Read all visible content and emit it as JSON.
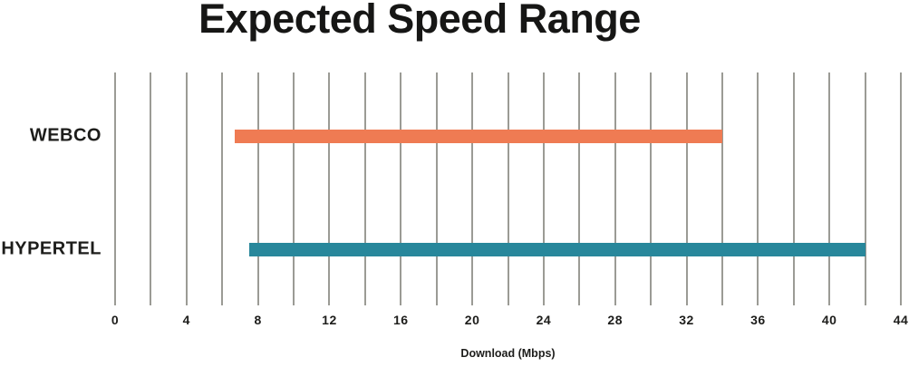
{
  "title": "Expected Speed Range",
  "chart_data": {
    "type": "bar",
    "subtype": "horizontal-range-bars",
    "title": "Expected Speed Range",
    "categories": [
      "WEBCO",
      "HYPERTEL"
    ],
    "series": [
      {
        "name": "WEBCO",
        "range_mbps": [
          6.7,
          34
        ],
        "color": "#ef7b53"
      },
      {
        "name": "HYPERTEL",
        "range_mbps": [
          7.5,
          42
        ],
        "color": "#28879b"
      }
    ],
    "xlabel": "Download (Mbps)",
    "xlim": [
      0,
      44
    ],
    "x_major_ticks": [
      0,
      4,
      8,
      12,
      16,
      20,
      24,
      28,
      32,
      36,
      40,
      44
    ],
    "x_gridline_step": 2,
    "grid": true,
    "legend": false,
    "colors": {
      "gridline": "#9b9b95",
      "text": "#1d1d1b",
      "background": "#ffffff"
    }
  }
}
